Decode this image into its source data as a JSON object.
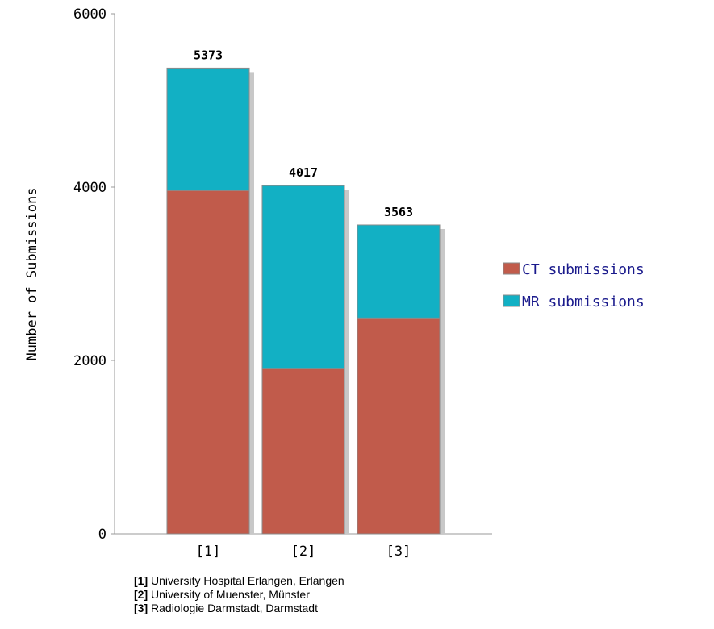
{
  "chart_data": {
    "type": "bar",
    "stacked": true,
    "ylabel": "Number of Submissions",
    "ylim": [
      0,
      6000
    ],
    "yticks": [
      "0",
      "2000",
      "4000",
      "6000"
    ],
    "categories": [
      "[1]",
      "[2]",
      "[3]"
    ],
    "totals": [
      "5373",
      "4017",
      "3563"
    ],
    "series": [
      {
        "name": "CT submissions",
        "values": [
          3960,
          1910,
          2490
        ],
        "color": "#c15b4b"
      },
      {
        "name": "MR submissions",
        "values": [
          1413,
          2107,
          1073
        ],
        "color": "#12b0c4"
      }
    ],
    "legend_position": "right",
    "grid": false
  },
  "footnotes": [
    {
      "key": "[1]",
      "text": " University Hospital Erlangen, Erlangen"
    },
    {
      "key": "[2]",
      "text": " University of Muenster, Münster"
    },
    {
      "key": "[3]",
      "text": " Radiologie Darmstadt, Darmstadt"
    }
  ]
}
